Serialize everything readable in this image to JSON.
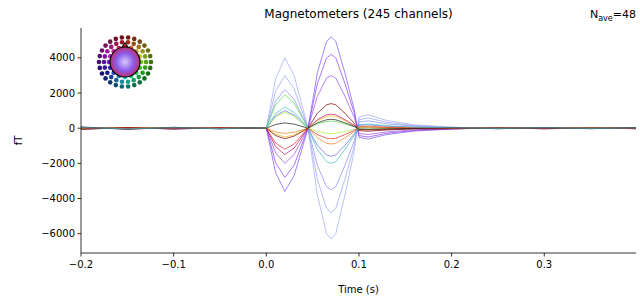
{
  "chart_data": {
    "type": "line",
    "title": "Magnetometers (245 channels)",
    "annotation": {
      "base": "N",
      "subscript": "ave",
      "suffix": "=48"
    },
    "x_label": "Time (s)",
    "y_label": "fT",
    "xlim": [
      -0.2,
      0.399
    ],
    "ylim": [
      -7100,
      5700
    ],
    "xticks": [
      {
        "value": -0.2,
        "label": "−0.2"
      },
      {
        "value": -0.1,
        "label": "−0.1"
      },
      {
        "value": 0,
        "label": "0.0"
      },
      {
        "value": 0.1,
        "label": "0.1"
      },
      {
        "value": 0.2,
        "label": "0.2"
      },
      {
        "value": 0.3,
        "label": "0.3"
      }
    ],
    "yticks": [
      {
        "value": -6000,
        "label": "−6000"
      },
      {
        "value": -4000,
        "label": "−4000"
      },
      {
        "value": -2000,
        "label": "−2000"
      },
      0,
      2000,
      4000
    ],
    "grid": false,
    "x": [
      -0.2,
      -0.15,
      -0.1,
      -0.05,
      -0.02,
      0,
      0.01,
      0.02,
      0.03,
      0.045,
      0.055,
      0.065,
      0.07,
      0.075,
      0.085,
      0.095,
      0.1,
      0.11,
      0.13,
      0.16,
      0.2,
      0.25,
      0.3,
      0.35,
      0.399
    ],
    "series": [
      {
        "color": "#a0a8f0",
        "values": [
          60,
          -40,
          50,
          -30,
          20,
          0,
          2800,
          4000,
          3000,
          0,
          -3780,
          -5990,
          -6300,
          -5990,
          -3780,
          -1260,
          630,
          760,
          440,
          190,
          60,
          -30,
          40,
          -20,
          30
        ]
      },
      {
        "color": "#9aa0f5",
        "values": [
          50,
          -30,
          40,
          -20,
          10,
          0,
          2100,
          3000,
          2250,
          0,
          -2880,
          -4560,
          -4800,
          -4560,
          -2880,
          -960,
          480,
          580,
          340,
          140,
          50,
          -20,
          30,
          -10,
          20
        ]
      },
      {
        "color": "#8c8cf0",
        "values": [
          -40,
          30,
          -30,
          20,
          -10,
          0,
          1540,
          2200,
          1650,
          0,
          -2100,
          -3330,
          -3500,
          -3330,
          -2100,
          -700,
          350,
          420,
          250,
          110,
          30,
          20,
          -20,
          10,
          -20
        ]
      },
      {
        "color": "#7f55f0",
        "values": [
          -70,
          40,
          -50,
          30,
          -20,
          0,
          -2520,
          -3600,
          -2700,
          0,
          3120,
          4940,
          5200,
          4940,
          3120,
          1040,
          -520,
          -620,
          -360,
          -160,
          -50,
          30,
          -40,
          20,
          -30
        ]
      },
      {
        "color": "#8a3ff0",
        "values": [
          50,
          -40,
          30,
          -30,
          20,
          0,
          -1960,
          -2800,
          -2100,
          0,
          2520,
          3990,
          4200,
          3990,
          2520,
          840,
          -420,
          -500,
          -290,
          -130,
          -40,
          20,
          30,
          -20,
          20
        ]
      },
      {
        "color": "#9b4fe8",
        "values": [
          -30,
          20,
          -40,
          10,
          -10,
          0,
          -1400,
          -2000,
          -1500,
          0,
          1800,
          2850,
          3000,
          2850,
          1800,
          600,
          -300,
          -360,
          -210,
          -90,
          -30,
          10,
          -20,
          10,
          -10
        ]
      },
      {
        "color": "#6a6af0",
        "values": [
          30,
          -20,
          20,
          -10,
          10,
          0,
          700,
          1000,
          750,
          0,
          -960,
          -1520,
          -1600,
          -1520,
          -960,
          -320,
          160,
          190,
          110,
          50,
          10,
          -10,
          20,
          -10,
          10
        ]
      },
      {
        "color": "#55e055",
        "values": [
          -40,
          30,
          -20,
          20,
          -10,
          0,
          1330,
          1900,
          1430,
          0,
          240,
          380,
          400,
          380,
          240,
          80,
          -40,
          -50,
          -30,
          -10,
          -20,
          10,
          -10,
          20,
          -10
        ]
      },
      {
        "color": "#aaee33",
        "values": [
          20,
          -10,
          30,
          -20,
          10,
          0,
          630,
          900,
          680,
          0,
          -180,
          -290,
          -300,
          -290,
          -180,
          -60,
          30,
          40,
          20,
          10,
          10,
          -10,
          10,
          -10,
          10
        ]
      },
      {
        "color": "#e8c020",
        "values": [
          -20,
          20,
          -10,
          10,
          -10,
          0,
          -350,
          -500,
          -380,
          0,
          420,
          670,
          700,
          670,
          420,
          140,
          -70,
          -80,
          -50,
          -20,
          -10,
          10,
          -10,
          10,
          -10
        ]
      },
      {
        "color": "#f08020",
        "values": [
          20,
          -20,
          10,
          -10,
          10,
          0,
          -210,
          -300,
          -230,
          0,
          -540,
          -860,
          -900,
          -860,
          -540,
          -180,
          90,
          110,
          60,
          30,
          10,
          -10,
          10,
          -10,
          10
        ]
      },
      {
        "color": "#e03030",
        "values": [
          -60,
          40,
          -30,
          30,
          -20,
          0,
          -840,
          -1200,
          -900,
          0,
          -360,
          -570,
          -600,
          -570,
          -360,
          -120,
          60,
          70,
          40,
          20,
          -20,
          10,
          -20,
          10,
          -30
        ]
      },
      {
        "color": "#c01060",
        "values": [
          40,
          -50,
          20,
          -20,
          10,
          0,
          -1050,
          -1500,
          -1130,
          0,
          480,
          760,
          800,
          760,
          480,
          160,
          -80,
          -100,
          -60,
          -20,
          20,
          -10,
          20,
          -20,
          20
        ]
      },
      {
        "color": "#800000",
        "values": [
          -50,
          30,
          -40,
          20,
          -10,
          0,
          -420,
          -600,
          -450,
          0,
          840,
          1330,
          1400,
          1330,
          840,
          280,
          -140,
          -170,
          -100,
          -40,
          -30,
          20,
          -30,
          20,
          -20
        ]
      },
      {
        "color": "#202020",
        "values": [
          70,
          -60,
          50,
          -40,
          30,
          0,
          210,
          300,
          230,
          0,
          300,
          480,
          500,
          480,
          300,
          100,
          -50,
          -60,
          -40,
          -10,
          40,
          -30,
          40,
          -30,
          40
        ]
      },
      {
        "color": "#40c0c0",
        "values": [
          30,
          -30,
          20,
          -20,
          10,
          0,
          840,
          1200,
          900,
          0,
          -1200,
          -1900,
          -2000,
          -1900,
          -1200,
          -400,
          200,
          240,
          140,
          60,
          20,
          -10,
          20,
          -10,
          10
        ]
      }
    ]
  }
}
